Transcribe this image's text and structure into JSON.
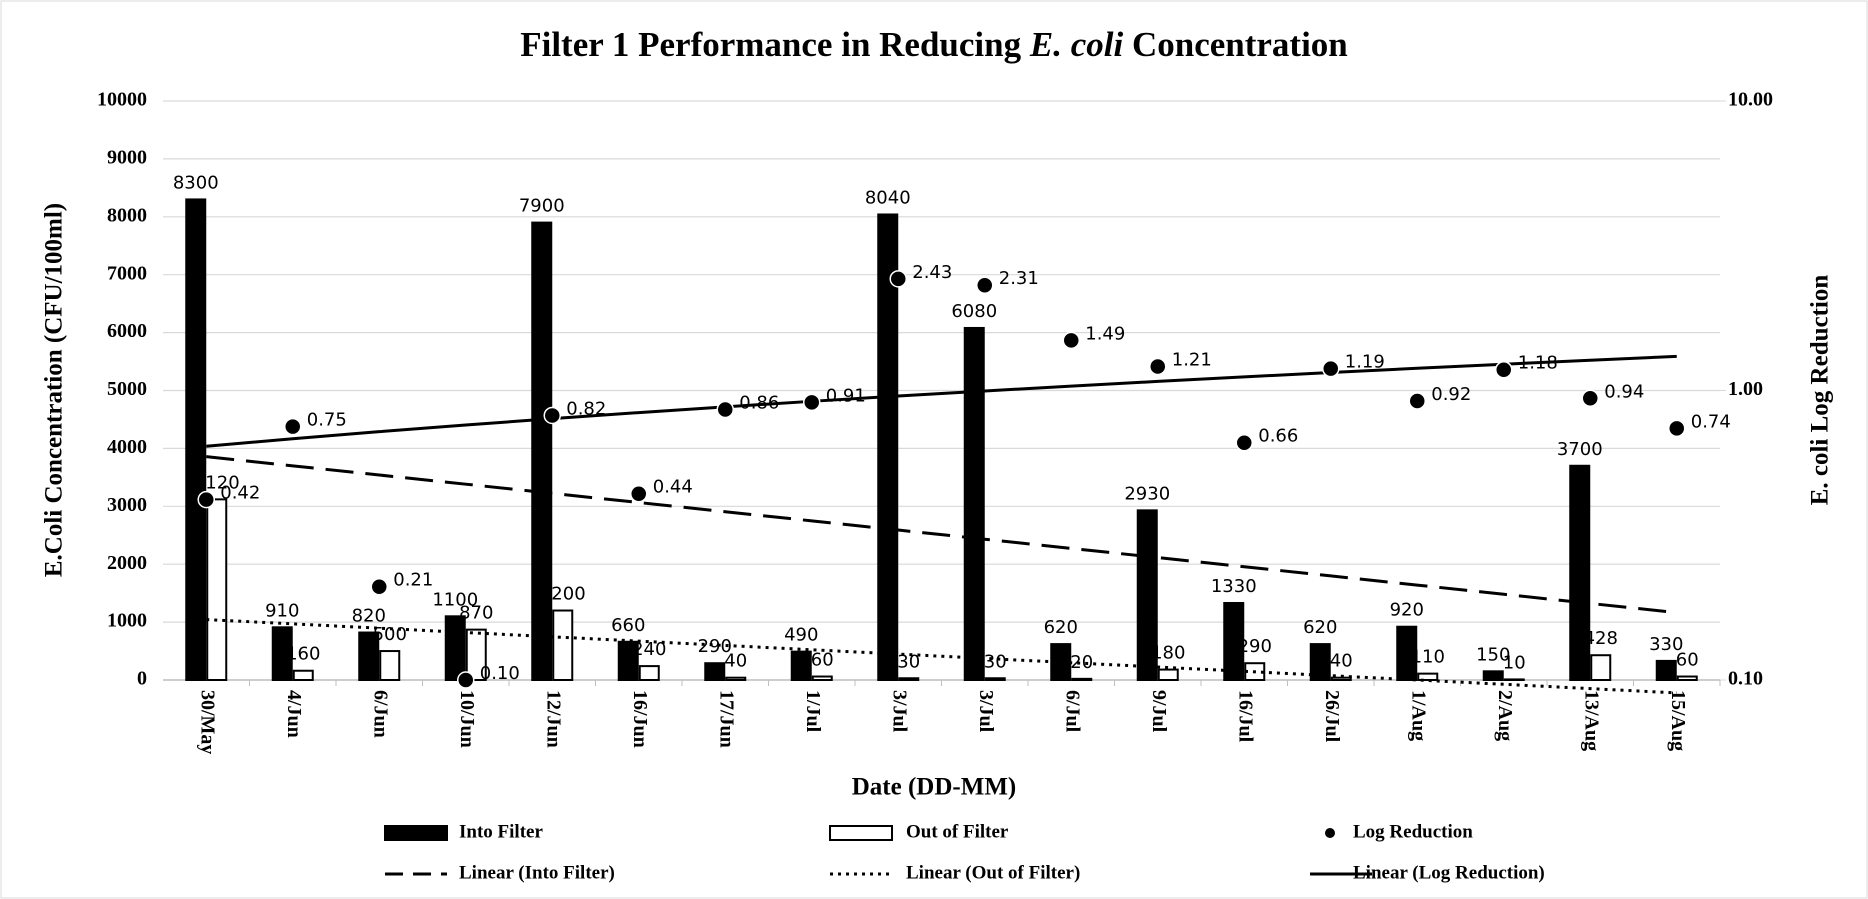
{
  "chart_data": {
    "type": "bar",
    "title": "Filter 1 Performance in Reducing ",
    "title_italic": "E. coli",
    "title_end": " Concentration",
    "x_label": "Date (DD-MM)",
    "y_label": "E.Coli Concentration (CFU/100ml)",
    "y2_label": "E. coli Log Reduction",
    "categories": [
      "30/May",
      "4/Jun",
      "6/Jun",
      "10/Jun",
      "12/Jun",
      "16/Jun",
      "17/Jun",
      "1/Jul",
      "3/Jul",
      "3/Jul",
      "6/Jul",
      "9/Jul",
      "16/Jul",
      "26/Jul",
      "1/Aug",
      "2/Aug",
      "13/Aug",
      "15/Aug"
    ],
    "ylim": [
      0,
      10000
    ],
    "yticks": [
      0,
      1000,
      2000,
      3000,
      4000,
      5000,
      6000,
      7000,
      8000,
      9000,
      10000
    ],
    "y2lim": [
      0.1,
      10
    ],
    "y2ticks": [
      {
        "value": 0.1,
        "label": "0.10"
      },
      {
        "value": 1,
        "label": "1.00"
      },
      {
        "value": 10,
        "label": "10.00"
      }
    ],
    "y2_log": true,
    "grid": true,
    "series": [
      {
        "name": "Into Filter",
        "kind": "bar",
        "color": "#000000",
        "values": [
          8300,
          910,
          820,
          1100,
          7900,
          660,
          290,
          490,
          8040,
          6080,
          620,
          2930,
          1330,
          620,
          920,
          150,
          3700,
          330
        ],
        "trendline": {
          "name": "Linear (Into Filter)",
          "dash": "dashed"
        }
      },
      {
        "name": "Out of Filter",
        "kind": "bar",
        "color": "#ffffff",
        "values": [
          3120,
          160,
          500,
          870,
          1200,
          240,
          40,
          60,
          30,
          30,
          20,
          180,
          290,
          40,
          110,
          10,
          428,
          60
        ],
        "trendline": {
          "name": "Linear (Out of Filter)",
          "dash": "dotted"
        }
      },
      {
        "name": "Log Reduction",
        "kind": "scatter",
        "axis": "y2",
        "color": "#000000",
        "values": [
          0.42,
          0.75,
          0.21,
          0.1,
          0.82,
          0.44,
          0.86,
          0.91,
          2.43,
          2.31,
          1.49,
          1.21,
          0.66,
          1.19,
          0.92,
          1.18,
          0.94,
          0.74
        ],
        "value_labels": [
          "0.42",
          "0.75",
          "0.21",
          "0.10",
          "0.82",
          "0.44",
          "0.86",
          "0.91",
          "2.43",
          "2.31",
          "1.49",
          "1.21",
          "0.66",
          "1.19",
          "0.92",
          "1.18",
          "0.94",
          "0.74"
        ],
        "trendline": {
          "name": "Linear (Log Reduction)",
          "dash": "solid"
        }
      }
    ]
  }
}
